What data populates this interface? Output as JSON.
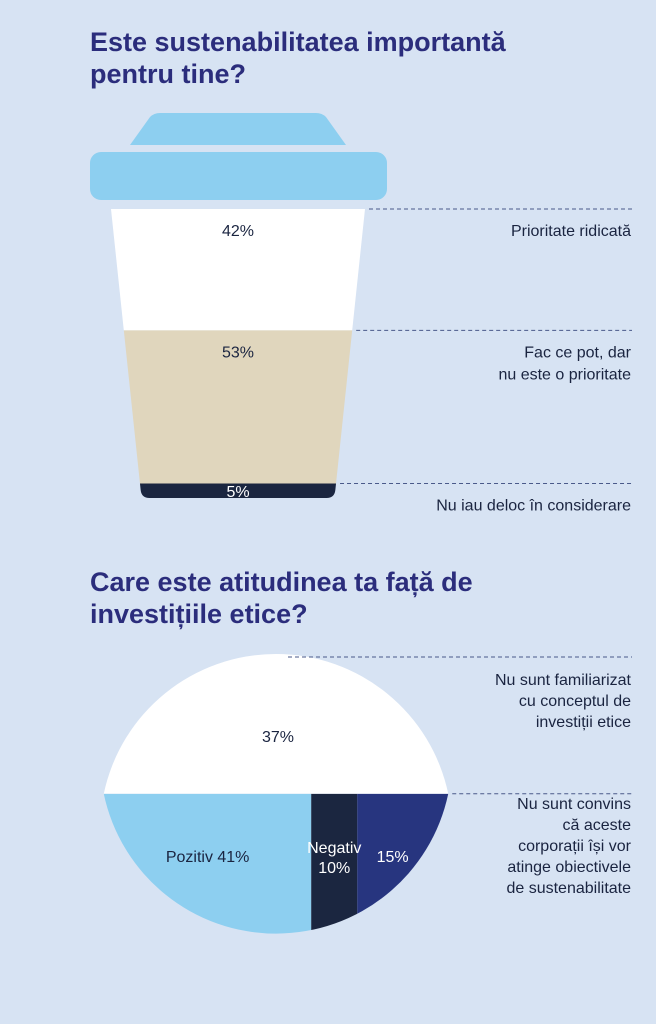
{
  "chart_data": [
    {
      "type": "bar",
      "title": "Este sustenabilitatea importantă pentru tine?",
      "categories": [
        "Prioritate ridicată",
        "Fac ce pot, dar nu este o prioritate",
        "Nu iau deloc în considerare"
      ],
      "values": [
        42,
        53,
        5
      ],
      "value_labels": [
        "42%",
        "53%",
        "5%"
      ],
      "label_lines": [
        [
          "Prioritate ridicată"
        ],
        [
          "Fac ce pot, dar",
          "nu este o prioritate"
        ],
        [
          "Nu iau deloc în considerare"
        ]
      ],
      "colors": [
        "#ffffff",
        "#e0d6bd",
        "#1b2640"
      ],
      "text_colors": [
        "#1a2440",
        "#1a2440",
        "#ffffff"
      ],
      "lid_color": "#8dcff0",
      "unit": "%"
    },
    {
      "type": "pie",
      "title": "Care este atitudinea ta față de investițiile etice?",
      "top": {
        "category": "Nu sunt familiarizat cu conceptul de investiții etice",
        "label_lines": [
          "Nu sunt familiarizat",
          "cu conceptul de",
          "investiții etice"
        ],
        "value": 37,
        "value_label": "37%",
        "color": "#ffffff"
      },
      "bottom": [
        {
          "category": "Pozitiv",
          "value": 41,
          "display": [
            "Pozitiv 41%"
          ],
          "color": "#8dcff0",
          "text_color": "#1a2440"
        },
        {
          "category": "Negativ",
          "value": 10,
          "display": [
            "Negativ",
            "10%"
          ],
          "color": "#1b2640",
          "text_color": "#ffffff"
        },
        {
          "category": "Nu sunt convins că aceste corporații își vor atinge obiectivele de sustenabilitate",
          "value": 15,
          "display": [
            "15%"
          ],
          "color": "#27357f",
          "text_color": "#ffffff"
        }
      ],
      "bottom_label_lines": [
        "Nu sunt convins",
        "că aceste",
        "corporații își vor",
        "atinge obiectivele",
        "de sustenabilitate"
      ],
      "unit": "%"
    }
  ]
}
